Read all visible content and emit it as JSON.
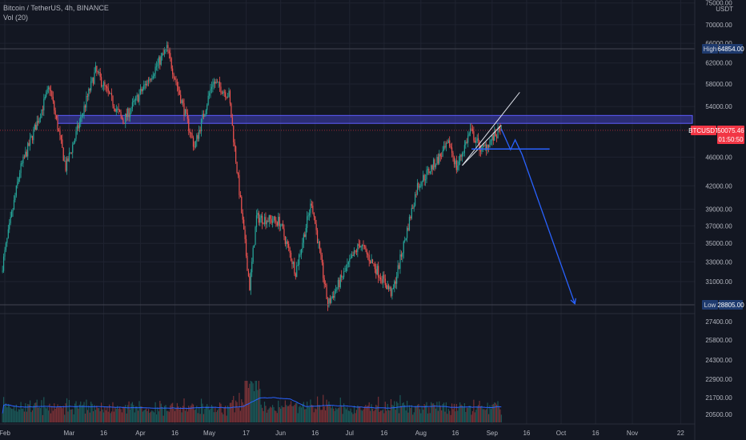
{
  "header": {
    "symbol_line": "Bitcoin / TetherUS, 4h, BINANCE",
    "volume_line": "Vol (20)"
  },
  "colors": {
    "background": "#131722",
    "grid": "#1f2330",
    "up": "#26a69a",
    "down": "#ef5350",
    "zone_fill": "#3f3fb8",
    "zone_border": "#5d5dff",
    "projection": "#2962ff",
    "wedge": "#e0e3eb",
    "level_line": "#434651",
    "price_tag": "#f23645",
    "hl_tag": "#1e3a6e",
    "volume_ma": "#2962ff"
  },
  "chart_data": {
    "type": "candlestick",
    "xlabels": [
      "Feb",
      "Mar",
      "16",
      "Apr",
      "16",
      "May",
      "17",
      "Jun",
      "16",
      "Jul",
      "16",
      "Aug",
      "16",
      "Sep",
      "16",
      "Oct",
      "16",
      "Nov",
      "22"
    ],
    "xlabel_dates": [
      "2021-02-01",
      "2021-03-01",
      "2021-03-16",
      "2021-04-01",
      "2021-04-16",
      "2021-05-01",
      "2021-05-17",
      "2021-06-01",
      "2021-06-16",
      "2021-07-01",
      "2021-07-16",
      "2021-08-01",
      "2021-08-16",
      "2021-09-01",
      "2021-09-16",
      "2021-10-01",
      "2021-10-16",
      "2021-11-01",
      "2021-11-22"
    ],
    "price_axis": {
      "scale": "log",
      "unit": "USDT",
      "ticks": [
        75000,
        70000,
        66000,
        62000,
        58000,
        54000,
        46000,
        42000,
        39000,
        37000,
        35000,
        33000,
        31000,
        27400,
        25800,
        24300,
        22900,
        21700,
        20500
      ],
      "tick_labels": [
        "75000.00",
        "70000.00",
        "66000.00",
        "62000.00",
        "58000.00",
        "54000.00",
        "46000.00",
        "42000.00",
        "39000.00",
        "37000.00",
        "35000.00",
        "33000.00",
        "31000.00",
        "27400.00",
        "25800.00",
        "24300.00",
        "22900.00",
        "21700.00",
        "20500.00"
      ]
    },
    "price_path": [
      {
        "date": "2021-01-31",
        "price": 32000
      },
      {
        "date": "2021-02-08",
        "price": 44000
      },
      {
        "date": "2021-02-21",
        "price": 57500
      },
      {
        "date": "2021-02-28",
        "price": 44500
      },
      {
        "date": "2021-03-13",
        "price": 60500
      },
      {
        "date": "2021-03-25",
        "price": 51500
      },
      {
        "date": "2021-04-13",
        "price": 64854
      },
      {
        "date": "2021-04-25",
        "price": 47500
      },
      {
        "date": "2021-05-03",
        "price": 58500
      },
      {
        "date": "2021-05-10",
        "price": 56000
      },
      {
        "date": "2021-05-19",
        "price": 30500
      },
      {
        "date": "2021-05-22",
        "price": 38000
      },
      {
        "date": "2021-06-01",
        "price": 37500
      },
      {
        "date": "2021-06-08",
        "price": 32000
      },
      {
        "date": "2021-06-15",
        "price": 40000
      },
      {
        "date": "2021-06-22",
        "price": 28805
      },
      {
        "date": "2021-07-06",
        "price": 35000
      },
      {
        "date": "2021-07-20",
        "price": 29800
      },
      {
        "date": "2021-07-31",
        "price": 42000
      },
      {
        "date": "2021-08-14",
        "price": 48000
      },
      {
        "date": "2021-08-17",
        "price": 44500
      },
      {
        "date": "2021-08-23",
        "price": 50000
      },
      {
        "date": "2021-08-28",
        "price": 47000
      },
      {
        "date": "2021-09-05",
        "price": 50075
      }
    ],
    "series": [
      {
        "name": "Vol (20)",
        "type": "volume",
        "ma_period": 20
      }
    ],
    "annotations": {
      "resistance_zone": {
        "top": 51200,
        "bottom": 52500,
        "from": "2021-02-24",
        "to": "2021-11-25"
      },
      "support_line": {
        "price": 47200,
        "from": "2021-08-23",
        "to": "2021-09-26"
      },
      "wedge_upper": [
        {
          "date": "2021-08-19",
          "price": 44800
        },
        {
          "date": "2021-09-13",
          "price": 56500
        }
      ],
      "wedge_lower": [
        {
          "date": "2021-08-19",
          "price": 44800
        },
        {
          "date": "2021-09-05",
          "price": 50900
        }
      ],
      "projection": [
        {
          "date": "2021-09-05",
          "price": 50300
        },
        {
          "date": "2021-09-09",
          "price": 47100
        },
        {
          "date": "2021-09-11",
          "price": 48600
        },
        {
          "date": "2021-09-14",
          "price": 46400
        },
        {
          "date": "2021-10-07",
          "price": 28900
        }
      ]
    },
    "high": {
      "label": "High",
      "value": 64854,
      "value_label": "64854.00"
    },
    "low": {
      "label": "Low",
      "value": 28805,
      "value_label": "28805.00"
    },
    "last": {
      "symbol": "BTCUSDT",
      "value": 50075.46,
      "value_label": "50075.46",
      "countdown": "01:50:50"
    },
    "grid": true,
    "legend": "top-left"
  }
}
